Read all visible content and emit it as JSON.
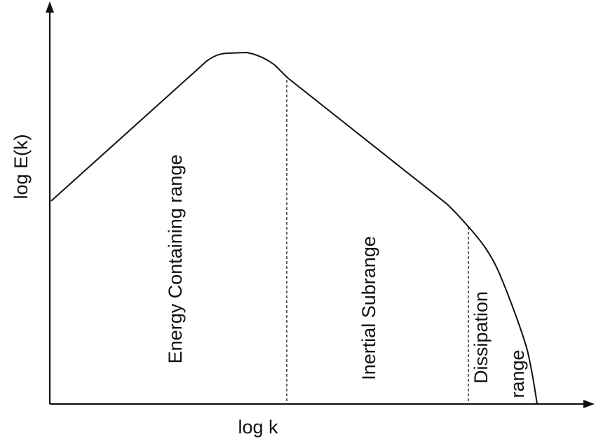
{
  "axes": {
    "y_label": "log E(k)",
    "x_label": "log k"
  },
  "regions": {
    "energy_containing": "Energy Containing range",
    "inertial": "Inertial Subrange",
    "dissipation_line1": "Dissipation",
    "dissipation_line2": "range"
  }
}
